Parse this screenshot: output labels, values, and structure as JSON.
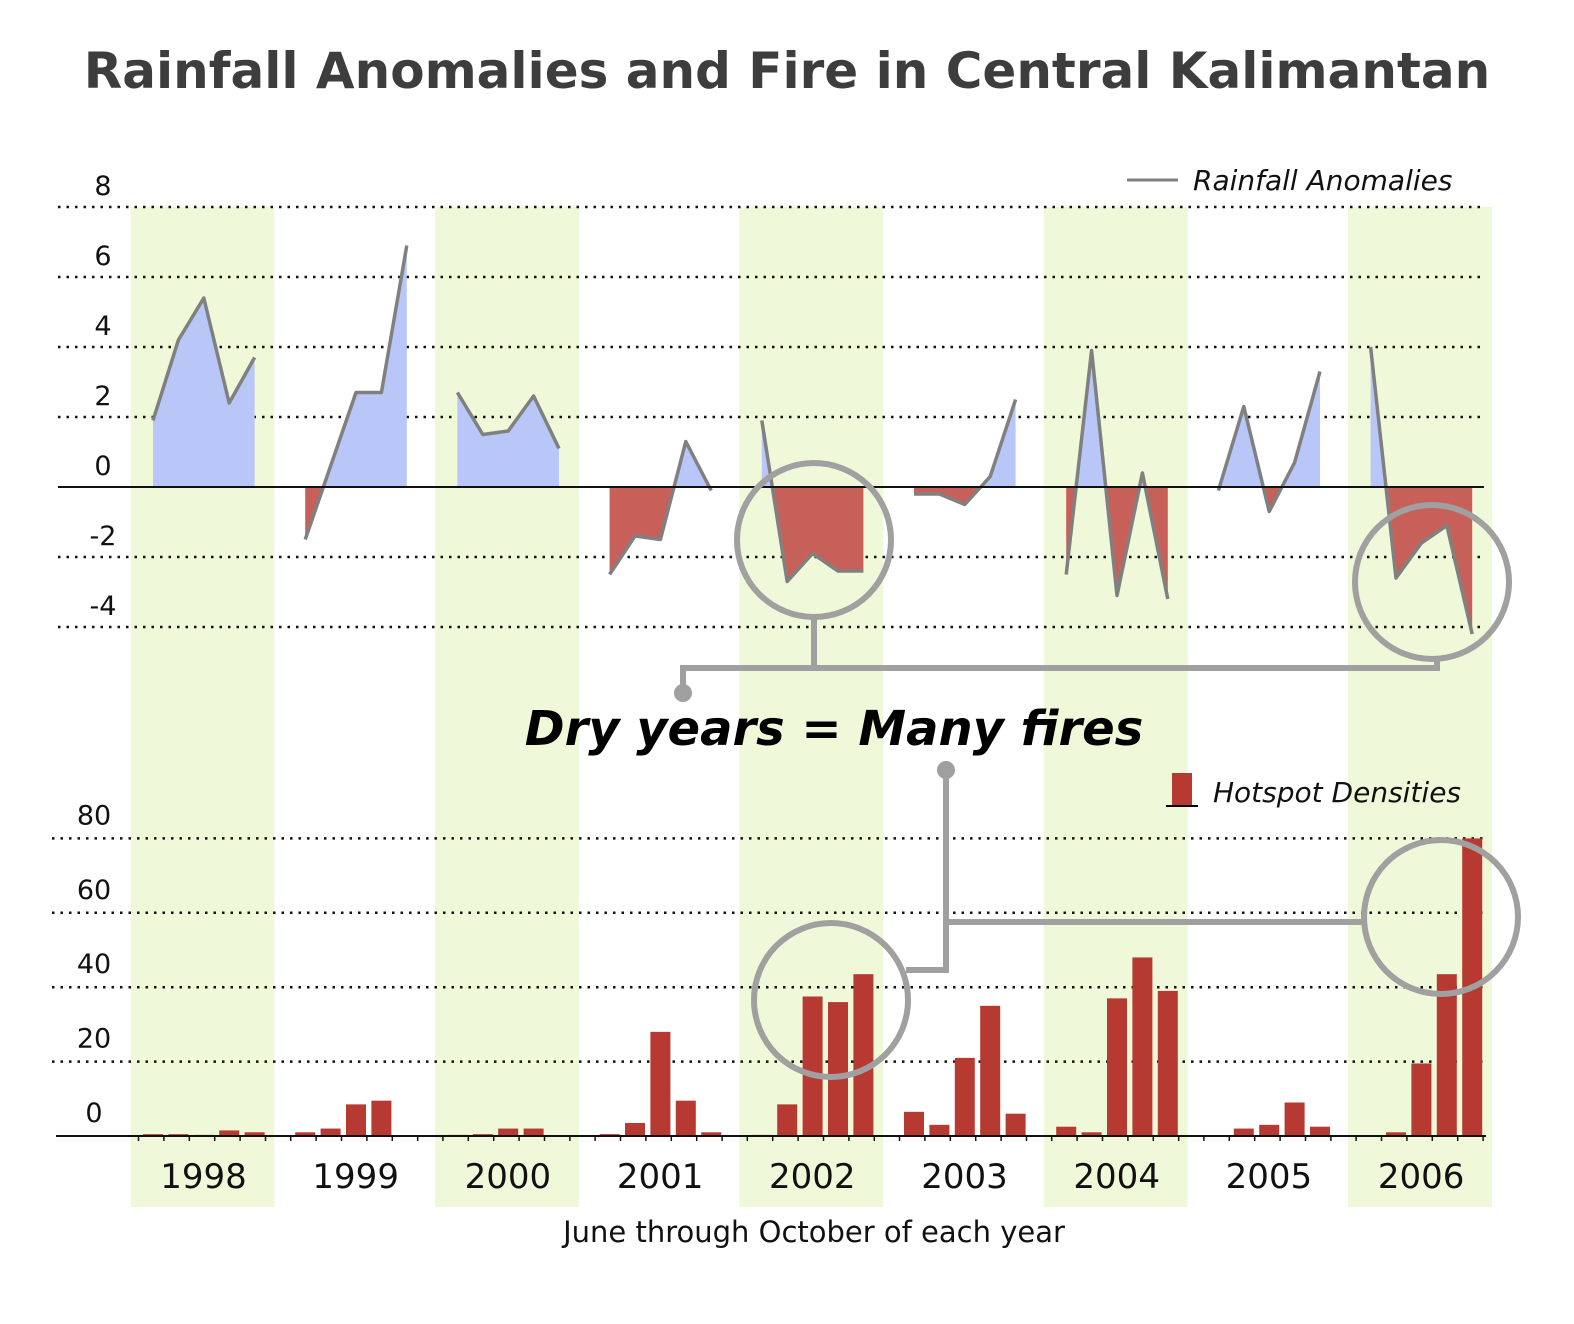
{
  "title": "Rainfall Anomalies and Fire in Central Kalimantan",
  "callout": "Dry years  = Many fires",
  "xlabel": "June through October of each year",
  "years": [
    "1998",
    "1999",
    "2000",
    "2001",
    "2002",
    "2003",
    "2004",
    "2005",
    "2006"
  ],
  "colors": {
    "positive_fill": "#b8c6f8",
    "negative_fill": "#c8605a",
    "line": "#808080",
    "bar": "#b73a32",
    "band": "#eff8d8",
    "callout_gray": "#a0a0a0"
  },
  "chart_data": [
    {
      "type": "area",
      "legend": "Rainfall Anomalies",
      "legend_position": "top-right",
      "yticks": [
        8,
        6,
        4,
        2,
        0,
        -2,
        -4
      ],
      "ylim": [
        -4,
        8
      ],
      "grid": true,
      "series": [
        {
          "year": "1998",
          "values": [
            1.9,
            4.2,
            5.4,
            2.4,
            3.7
          ]
        },
        {
          "year": "1999",
          "values": [
            -1.5,
            0.6,
            2.7,
            2.7,
            6.9
          ]
        },
        {
          "year": "2000",
          "values": [
            2.7,
            1.5,
            1.6,
            2.6,
            1.1
          ]
        },
        {
          "year": "2001",
          "values": [
            -2.5,
            -1.4,
            -1.5,
            1.3,
            -0.1
          ]
        },
        {
          "year": "2002",
          "values": [
            1.9,
            -2.7,
            -1.9,
            -2.4,
            -2.4
          ]
        },
        {
          "year": "2003",
          "values": [
            -0.2,
            -0.2,
            -0.5,
            0.3,
            2.5
          ]
        },
        {
          "year": "2004",
          "values": [
            -2.5,
            3.9,
            -3.1,
            0.4,
            -3.2
          ]
        },
        {
          "year": "2005",
          "values": [
            -0.1,
            2.3,
            -0.7,
            0.7,
            3.3
          ]
        },
        {
          "year": "2006",
          "values": [
            4.0,
            -2.6,
            -1.6,
            -1.1,
            -4.2
          ]
        }
      ]
    },
    {
      "type": "bar",
      "legend": "Hotspot Densities",
      "legend_position": "top-right",
      "yticks": [
        80,
        60,
        40,
        20,
        0
      ],
      "ylim": [
        0,
        80
      ],
      "grid": true,
      "series": [
        {
          "year": "1998",
          "values": [
            0.5,
            0.5,
            0.3,
            1.5,
            1.0
          ]
        },
        {
          "year": "1999",
          "values": [
            1.0,
            2.0,
            8.5,
            9.5,
            0
          ]
        },
        {
          "year": "2000",
          "values": [
            0.3,
            0.5,
            2.0,
            2.0,
            0
          ]
        },
        {
          "year": "2001",
          "values": [
            0.5,
            3.5,
            28,
            9.5,
            1.0
          ]
        },
        {
          "year": "2002",
          "values": [
            0.3,
            8.5,
            37.5,
            36,
            43.5
          ]
        },
        {
          "year": "2003",
          "values": [
            6.5,
            3.0,
            21,
            35,
            6.0
          ]
        },
        {
          "year": "2004",
          "values": [
            2.5,
            1.0,
            37,
            48,
            39
          ]
        },
        {
          "year": "2005",
          "values": [
            0,
            2.0,
            3.0,
            9.0,
            2.5
          ]
        },
        {
          "year": "2006",
          "values": [
            0,
            1.0,
            19.5,
            43.5,
            80
          ]
        }
      ]
    }
  ]
}
